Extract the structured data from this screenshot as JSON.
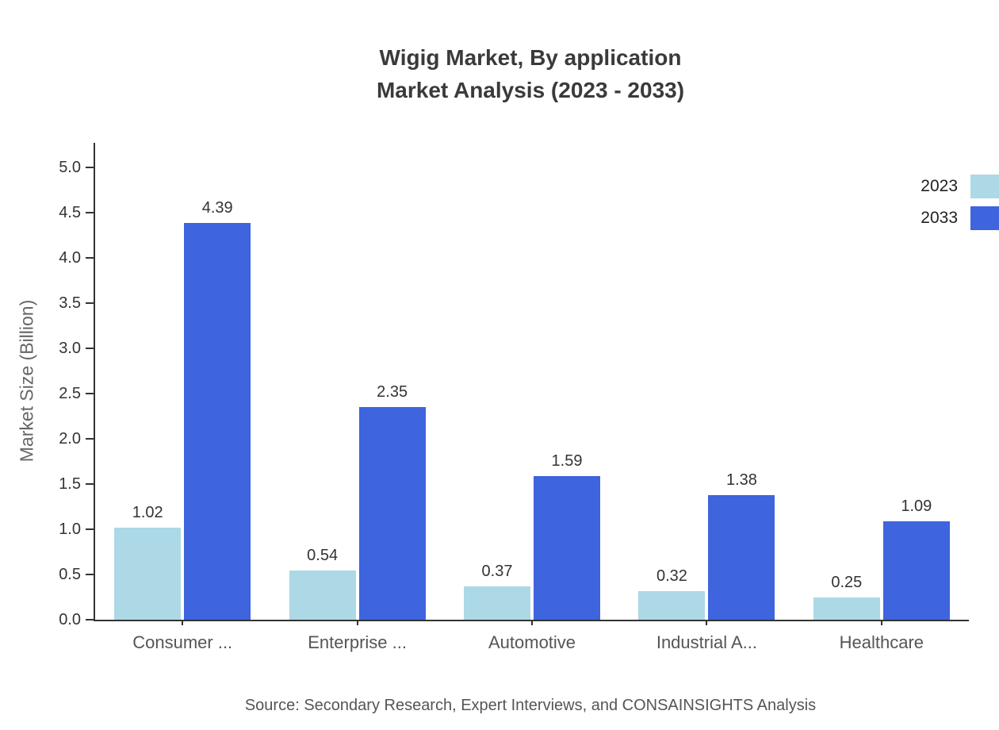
{
  "title": {
    "line1": "Wigig Market, By application",
    "line2": "Market Analysis (2023 - 2033)"
  },
  "chart_data": {
    "type": "bar",
    "categories": [
      "Consumer ...",
      "Enterprise ...",
      "Automotive",
      "Industrial A...",
      "Healthcare"
    ],
    "series": [
      {
        "name": "2023",
        "color": "#ADD8E6",
        "values": [
          1.02,
          0.54,
          0.37,
          0.32,
          0.25
        ]
      },
      {
        "name": "2033",
        "color": "#3E64DE",
        "values": [
          4.39,
          2.35,
          1.59,
          1.38,
          1.09
        ]
      }
    ],
    "title": "Wigig Market, By application Market Analysis (2023 - 2033)",
    "xlabel": "",
    "ylabel": "Market Size (Billion)",
    "ylim": [
      0,
      5.0
    ],
    "ytick_step": 0.5,
    "yticks": [
      "0.0",
      "0.5",
      "1.0",
      "1.5",
      "2.0",
      "2.5",
      "3.0",
      "3.5",
      "4.0",
      "4.5",
      "5.0"
    ],
    "grid": false,
    "legend_position": "top-right"
  },
  "source": "Source: Secondary Research, Expert Interviews, and CONSAINSIGHTS Analysis"
}
